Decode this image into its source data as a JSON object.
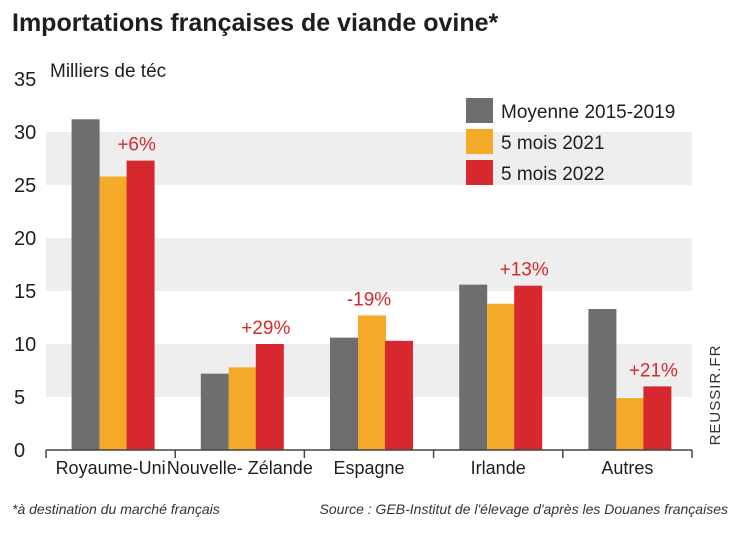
{
  "title": "Importations françaises de viande ovine*",
  "footnote": "*à destination du marché français",
  "source": "Source : GEB-Institut de l'élevage d'après les Douanes françaises",
  "credit": "REUSSIR.FR",
  "colors": {
    "moyenne": "#6e6e6e",
    "mois2021": "#f5a928",
    "mois2022": "#d7282f",
    "annotation": "#d7282f",
    "band": "#eeeeee"
  },
  "chart_data": {
    "type": "bar",
    "ylabel": "Milliers de téc",
    "ylim": [
      0,
      35
    ],
    "yticks": [
      0,
      5,
      10,
      15,
      20,
      25,
      30,
      35
    ],
    "grid": "alternating horizontal bands",
    "legend_position": "top-right",
    "categories": [
      "Royaume-Uni",
      "Nouvelle- Zélande",
      "Espagne",
      "Irlande",
      "Autres"
    ],
    "series": [
      {
        "name": "Moyenne 2015-2019",
        "values": [
          31.2,
          7.2,
          10.6,
          15.6,
          13.3
        ]
      },
      {
        "name": "5 mois 2021",
        "values": [
          25.8,
          7.8,
          12.7,
          13.8,
          4.9
        ]
      },
      {
        "name": "5 mois 2022",
        "values": [
          27.3,
          10.0,
          10.3,
          15.5,
          6.0
        ]
      }
    ],
    "annotations": [
      "+6%",
      "+29%",
      "-19%",
      "+13%",
      "+21%"
    ]
  }
}
